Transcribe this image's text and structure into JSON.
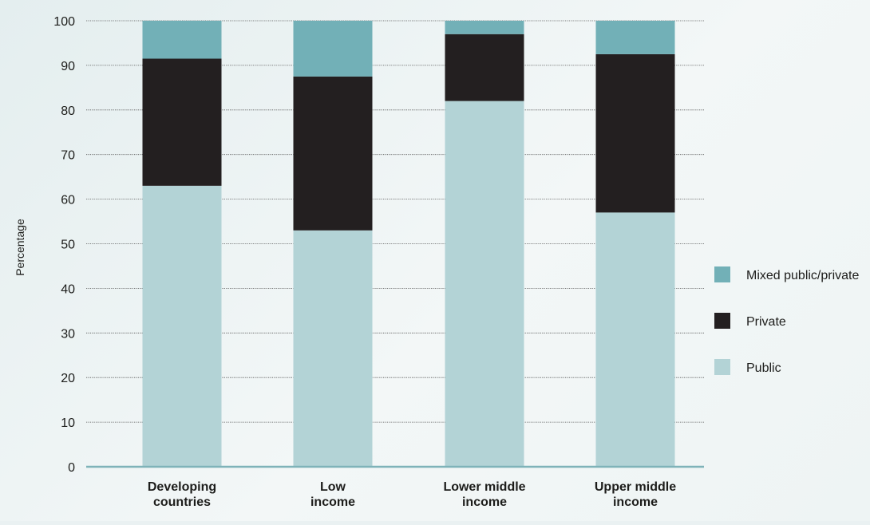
{
  "chart_data": {
    "type": "bar",
    "stacked": true,
    "title": "",
    "xlabel": "",
    "ylabel": "Percentage",
    "ylim": [
      0,
      100
    ],
    "yticks": [
      0,
      10,
      20,
      30,
      40,
      50,
      60,
      70,
      80,
      90,
      100
    ],
    "grid": true,
    "legend_position": "right",
    "categories": [
      [
        "Developing",
        "countries"
      ],
      [
        "Low",
        "income"
      ],
      [
        "Lower middle",
        "income"
      ],
      [
        "Upper middle",
        "income"
      ]
    ],
    "series": [
      {
        "name": "Public",
        "color": "#b3d3d6",
        "values": [
          63,
          53,
          82,
          57
        ]
      },
      {
        "name": "Private",
        "color": "#231f20",
        "values": [
          28.5,
          34.5,
          15,
          35.5
        ]
      },
      {
        "name": "Mixed public/private",
        "color": "#72b0b7",
        "values": [
          8.5,
          12.5,
          3,
          7.5
        ]
      }
    ],
    "legend_order": [
      "Mixed public/private",
      "Private",
      "Public"
    ]
  }
}
